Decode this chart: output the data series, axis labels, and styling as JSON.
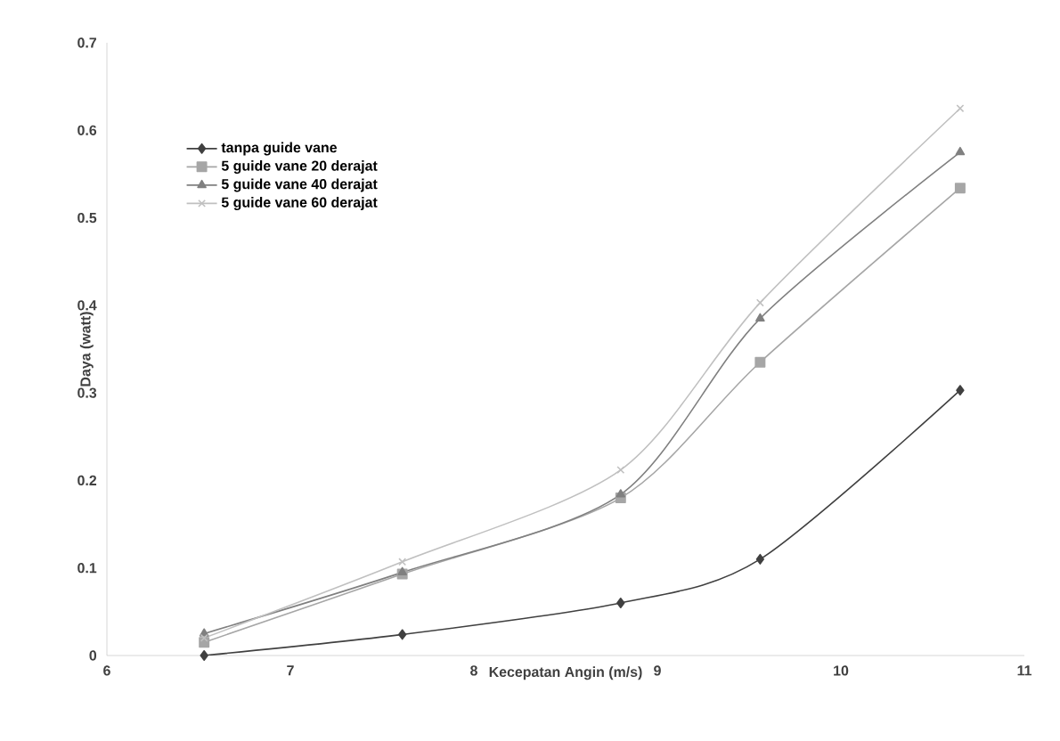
{
  "chart_data": {
    "type": "line",
    "xlabel": "Kecepatan Angin (m/s)",
    "ylabel": "Daya (watt)",
    "x": [
      6.53,
      7.61,
      8.8,
      9.56,
      10.65
    ],
    "series": [
      {
        "name": "tanpa guide vane",
        "color": "#404040",
        "marker": "diamond",
        "values": [
          0.0,
          0.024,
          0.06,
          0.11,
          0.303
        ]
      },
      {
        "name": "5 guide vane 20 derajat",
        "color": "#a6a6a6",
        "marker": "square",
        "values": [
          0.015,
          0.093,
          0.18,
          0.335,
          0.534
        ]
      },
      {
        "name": "5 guide vane 40 derajat",
        "color": "#808080",
        "marker": "triangle",
        "values": [
          0.025,
          0.095,
          0.184,
          0.385,
          0.575
        ]
      },
      {
        "name": "5 guide vane 60 derajat",
        "color": "#c0c0c0",
        "marker": "cross",
        "values": [
          0.02,
          0.107,
          0.212,
          0.403,
          0.625
        ]
      }
    ],
    "xlim": [
      6,
      11
    ],
    "xticks": [
      6,
      7,
      8,
      9,
      10,
      11
    ],
    "ylim": [
      0,
      0.7
    ],
    "yticks": [
      0,
      0.1,
      0.2,
      0.3,
      0.4,
      0.5,
      0.6,
      0.7
    ],
    "grid": false,
    "legend": "top left",
    "line_style": "solid"
  }
}
